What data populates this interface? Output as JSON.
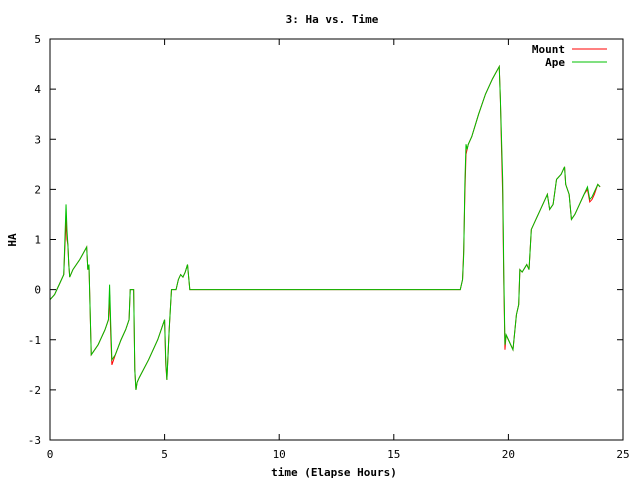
{
  "chart_data": {
    "type": "line",
    "title": "3: Ha vs. Time",
    "xlabel": "time (Elapse Hours)",
    "ylabel": "HA",
    "xlim": [
      0,
      25
    ],
    "ylim": [
      -3,
      5
    ],
    "xticks": [
      0,
      5,
      10,
      15,
      20,
      25
    ],
    "yticks": [
      -3,
      -2,
      -1,
      0,
      1,
      2,
      3,
      4,
      5
    ],
    "grid": false,
    "legend_position": "top-right",
    "series": [
      {
        "name": "Mount",
        "color": "#ff0000",
        "points": [
          [
            0.0,
            -0.2
          ],
          [
            0.2,
            -0.1
          ],
          [
            0.4,
            0.1
          ],
          [
            0.6,
            0.3
          ],
          [
            0.7,
            1.4
          ],
          [
            0.74,
            1.0
          ],
          [
            0.78,
            0.9
          ],
          [
            0.82,
            0.5
          ],
          [
            0.86,
            0.25
          ],
          [
            1.0,
            0.4
          ],
          [
            1.3,
            0.6
          ],
          [
            1.6,
            0.85
          ],
          [
            1.65,
            0.4
          ],
          [
            1.7,
            0.5
          ],
          [
            1.8,
            -1.3
          ],
          [
            2.1,
            -1.1
          ],
          [
            2.4,
            -0.8
          ],
          [
            2.55,
            -0.6
          ],
          [
            2.6,
            -0.1
          ],
          [
            2.65,
            -0.9
          ],
          [
            2.7,
            -1.5
          ],
          [
            2.85,
            -1.3
          ],
          [
            3.1,
            -1.0
          ],
          [
            3.3,
            -0.8
          ],
          [
            3.45,
            -0.6
          ],
          [
            3.5,
            0.0
          ],
          [
            3.55,
            0.0
          ],
          [
            3.65,
            0.0
          ],
          [
            3.7,
            -1.6
          ],
          [
            3.75,
            -2.0
          ],
          [
            3.8,
            -1.85
          ],
          [
            3.9,
            -1.75
          ],
          [
            4.3,
            -1.4
          ],
          [
            4.7,
            -1.0
          ],
          [
            5.0,
            -0.6
          ],
          [
            5.05,
            -1.5
          ],
          [
            5.1,
            -1.8
          ],
          [
            5.15,
            -1.3
          ],
          [
            5.2,
            -0.8
          ],
          [
            5.3,
            0.0
          ],
          [
            5.5,
            0.0
          ],
          [
            5.6,
            0.2
          ],
          [
            5.7,
            0.3
          ],
          [
            5.8,
            0.25
          ],
          [
            5.9,
            0.35
          ],
          [
            6.0,
            0.5
          ],
          [
            6.1,
            0.0
          ],
          [
            10.0,
            0.0
          ],
          [
            15.0,
            0.0
          ],
          [
            17.9,
            0.0
          ],
          [
            18.0,
            0.2
          ],
          [
            18.05,
            0.8
          ],
          [
            18.1,
            1.9
          ],
          [
            18.15,
            2.7
          ],
          [
            18.2,
            2.8
          ],
          [
            18.25,
            2.9
          ],
          [
            18.4,
            3.05
          ],
          [
            18.7,
            3.5
          ],
          [
            19.0,
            3.9
          ],
          [
            19.3,
            4.2
          ],
          [
            19.6,
            4.45
          ],
          [
            19.65,
            3.8
          ],
          [
            19.7,
            2.8
          ],
          [
            19.75,
            1.9
          ],
          [
            19.8,
            0.1
          ],
          [
            19.85,
            -1.2
          ],
          [
            19.9,
            -0.9
          ],
          [
            20.0,
            -1.0
          ],
          [
            20.2,
            -1.2
          ],
          [
            20.35,
            -0.5
          ],
          [
            20.45,
            -0.3
          ],
          [
            20.5,
            0.4
          ],
          [
            20.6,
            0.35
          ],
          [
            20.8,
            0.5
          ],
          [
            20.9,
            0.4
          ],
          [
            21.0,
            1.2
          ],
          [
            21.2,
            1.4
          ],
          [
            21.4,
            1.6
          ],
          [
            21.6,
            1.8
          ],
          [
            21.7,
            1.9
          ],
          [
            21.8,
            1.6
          ],
          [
            21.95,
            1.7
          ],
          [
            22.1,
            2.2
          ],
          [
            22.3,
            2.3
          ],
          [
            22.45,
            2.45
          ],
          [
            22.5,
            2.1
          ],
          [
            22.65,
            1.9
          ],
          [
            22.75,
            1.4
          ],
          [
            22.9,
            1.5
          ],
          [
            23.1,
            1.7
          ],
          [
            23.3,
            1.9
          ],
          [
            23.45,
            2.0
          ],
          [
            23.55,
            1.75
          ],
          [
            23.65,
            1.8
          ],
          [
            23.75,
            1.9
          ],
          [
            23.9,
            2.1
          ],
          [
            24.0,
            2.05
          ]
        ]
      },
      {
        "name": "Ape",
        "color": "#00c000",
        "points": [
          [
            0.0,
            -0.2
          ],
          [
            0.2,
            -0.1
          ],
          [
            0.4,
            0.1
          ],
          [
            0.6,
            0.3
          ],
          [
            0.7,
            1.7
          ],
          [
            0.74,
            1.2
          ],
          [
            0.78,
            0.9
          ],
          [
            0.82,
            0.5
          ],
          [
            0.86,
            0.25
          ],
          [
            1.0,
            0.4
          ],
          [
            1.3,
            0.6
          ],
          [
            1.6,
            0.85
          ],
          [
            1.65,
            0.4
          ],
          [
            1.7,
            0.5
          ],
          [
            1.8,
            -1.3
          ],
          [
            2.1,
            -1.1
          ],
          [
            2.4,
            -0.8
          ],
          [
            2.55,
            -0.6
          ],
          [
            2.6,
            0.1
          ],
          [
            2.65,
            -0.7
          ],
          [
            2.7,
            -1.4
          ],
          [
            2.85,
            -1.3
          ],
          [
            3.1,
            -1.0
          ],
          [
            3.3,
            -0.8
          ],
          [
            3.45,
            -0.6
          ],
          [
            3.5,
            0.0
          ],
          [
            3.55,
            0.0
          ],
          [
            3.65,
            0.0
          ],
          [
            3.7,
            -1.6
          ],
          [
            3.75,
            -2.0
          ],
          [
            3.8,
            -1.85
          ],
          [
            3.9,
            -1.75
          ],
          [
            4.3,
            -1.4
          ],
          [
            4.7,
            -1.0
          ],
          [
            5.0,
            -0.6
          ],
          [
            5.05,
            -1.4
          ],
          [
            5.1,
            -1.8
          ],
          [
            5.15,
            -1.3
          ],
          [
            5.2,
            -0.8
          ],
          [
            5.3,
            0.0
          ],
          [
            5.5,
            0.0
          ],
          [
            5.6,
            0.2
          ],
          [
            5.7,
            0.3
          ],
          [
            5.8,
            0.25
          ],
          [
            5.9,
            0.35
          ],
          [
            6.0,
            0.5
          ],
          [
            6.1,
            0.0
          ],
          [
            10.0,
            0.0
          ],
          [
            15.0,
            0.0
          ],
          [
            17.9,
            0.0
          ],
          [
            18.0,
            0.2
          ],
          [
            18.05,
            0.7
          ],
          [
            18.1,
            2.1
          ],
          [
            18.15,
            2.9
          ],
          [
            18.2,
            2.8
          ],
          [
            18.25,
            2.9
          ],
          [
            18.4,
            3.05
          ],
          [
            18.7,
            3.5
          ],
          [
            19.0,
            3.9
          ],
          [
            19.3,
            4.2
          ],
          [
            19.6,
            4.45
          ],
          [
            19.65,
            3.8
          ],
          [
            19.7,
            3.0
          ],
          [
            19.75,
            2.2
          ],
          [
            19.8,
            0.3
          ],
          [
            19.85,
            -1.1
          ],
          [
            19.9,
            -0.9
          ],
          [
            20.0,
            -1.0
          ],
          [
            20.2,
            -1.2
          ],
          [
            20.35,
            -0.5
          ],
          [
            20.45,
            -0.3
          ],
          [
            20.5,
            0.4
          ],
          [
            20.6,
            0.35
          ],
          [
            20.8,
            0.5
          ],
          [
            20.9,
            0.4
          ],
          [
            21.0,
            1.2
          ],
          [
            21.2,
            1.4
          ],
          [
            21.4,
            1.6
          ],
          [
            21.6,
            1.8
          ],
          [
            21.7,
            1.9
          ],
          [
            21.8,
            1.6
          ],
          [
            21.95,
            1.7
          ],
          [
            22.1,
            2.2
          ],
          [
            22.3,
            2.3
          ],
          [
            22.45,
            2.45
          ],
          [
            22.5,
            2.1
          ],
          [
            22.65,
            1.9
          ],
          [
            22.75,
            1.4
          ],
          [
            22.9,
            1.5
          ],
          [
            23.1,
            1.7
          ],
          [
            23.3,
            1.9
          ],
          [
            23.45,
            2.05
          ],
          [
            23.55,
            1.8
          ],
          [
            23.65,
            1.85
          ],
          [
            23.75,
            1.95
          ],
          [
            23.9,
            2.1
          ],
          [
            24.0,
            2.05
          ]
        ]
      }
    ]
  }
}
